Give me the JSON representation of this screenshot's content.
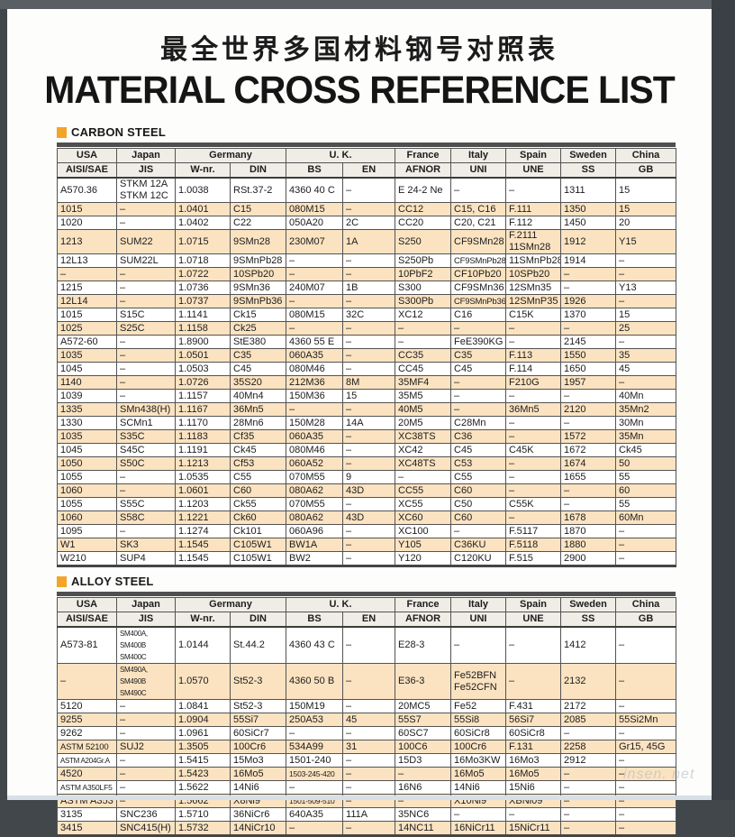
{
  "page": {
    "title_zh": "最全世界多国材料钢号对照表",
    "title_en": "MATERIAL CROSS REFERENCE LIST",
    "watermark": "insen. net"
  },
  "colors": {
    "accent_orange": "#F4A428",
    "row_stripe": "#FBE3C1",
    "header_bg": "#F0EDE7",
    "table_bar": "#4F4F4F",
    "frame_dark": "#42474B"
  },
  "sections": [
    {
      "heading": "CARBON STEEL",
      "groups": [
        {
          "label": "USA",
          "cols": [
            "AISI/SAE"
          ]
        },
        {
          "label": "Japan",
          "cols": [
            "JIS"
          ]
        },
        {
          "label": "Germany",
          "cols": [
            "W-nr.",
            "DIN"
          ]
        },
        {
          "label": "U. K.",
          "cols": [
            "BS",
            "EN"
          ]
        },
        {
          "label": "France",
          "cols": [
            "AFNOR"
          ]
        },
        {
          "label": "Italy",
          "cols": [
            "UNI"
          ]
        },
        {
          "label": "Spain",
          "cols": [
            "UNE"
          ]
        },
        {
          "label": "Sweden",
          "cols": [
            "SS"
          ]
        },
        {
          "label": "China",
          "cols": [
            "GB"
          ]
        }
      ],
      "rows": [
        [
          "A570.36",
          "STKM 12A\nSTKM 12C",
          "1.0038",
          "RSt.37-2",
          "4360 40 C",
          "–",
          "E 24-2 Ne",
          "–",
          "–",
          "1311",
          "15"
        ],
        [
          "1015",
          "–",
          "1.0401",
          "C15",
          "080M15",
          "–",
          "CC12",
          "C15, C16",
          "F.111",
          "1350",
          "15"
        ],
        [
          "1020",
          "–",
          "1.0402",
          "C22",
          "050A20",
          "2C",
          "CC20",
          "C20, C21",
          "F.112",
          "1450",
          "20"
        ],
        [
          "1213",
          "SUM22",
          "1.0715",
          "9SMn28",
          "230M07",
          "1A",
          "S250",
          "CF9SMn28",
          "F.2111\n11SMn28",
          "1912",
          "Y15"
        ],
        [
          "12L13",
          "SUM22L",
          "1.0718",
          "9SMnPb28",
          "–",
          "–",
          "S250Pb",
          "CF9SMnPb28",
          "11SMnPb28",
          "1914",
          "–"
        ],
        [
          "–",
          "–",
          "1.0722",
          "10SPb20",
          "–",
          "–",
          "10PbF2",
          "CF10Pb20",
          "10SPb20",
          "–",
          "–"
        ],
        [
          "1215",
          "–",
          "1.0736",
          "9SMn36",
          "240M07",
          "1B",
          "S300",
          "CF9SMn36",
          "12SMn35",
          "–",
          "Y13"
        ],
        [
          "12L14",
          "–",
          "1.0737",
          "9SMnPb36",
          "–",
          "–",
          "S300Pb",
          "CF9SMnPb36",
          "12SMnP35",
          "1926",
          "–"
        ],
        [
          "1015",
          "S15C",
          "1.1141",
          "Ck15",
          "080M15",
          "32C",
          "XC12",
          "C16",
          "C15K",
          "1370",
          "15"
        ],
        [
          "1025",
          "S25C",
          "1.1158",
          "Ck25",
          "–",
          "–",
          "–",
          "–",
          "–",
          "–",
          "25"
        ],
        [
          "A572-60",
          "–",
          "1.8900",
          "StE380",
          "4360 55 E",
          "–",
          "–",
          "FeE390KG",
          "–",
          "2145",
          "–"
        ],
        [
          "1035",
          "–",
          "1.0501",
          "C35",
          "060A35",
          "–",
          "CC35",
          "C35",
          "F.113",
          "1550",
          "35"
        ],
        [
          "1045",
          "–",
          "1.0503",
          "C45",
          "080M46",
          "–",
          "CC45",
          "C45",
          "F.114",
          "1650",
          "45"
        ],
        [
          "1140",
          "–",
          "1.0726",
          "35S20",
          "212M36",
          "8M",
          "35MF4",
          "–",
          "F210G",
          "1957",
          "–"
        ],
        [
          "1039",
          "–",
          "1.1157",
          "40Mn4",
          "150M36",
          "15",
          "35M5",
          "–",
          "–",
          "–",
          "40Mn"
        ],
        [
          "1335",
          "SMn438(H)",
          "1.1167",
          "36Mn5",
          "–",
          "–",
          "40M5",
          "–",
          "36Mn5",
          "2120",
          "35Mn2"
        ],
        [
          "1330",
          "SCMn1",
          "1.1170",
          "28Mn6",
          "150M28",
          "14A",
          "20M5",
          "C28Mn",
          "–",
          "–",
          "30Mn"
        ],
        [
          "1035",
          "S35C",
          "1.1183",
          "Cf35",
          "060A35",
          "–",
          "XC38TS",
          "C36",
          "–",
          "1572",
          "35Mn"
        ],
        [
          "1045",
          "S45C",
          "1.1191",
          "Ck45",
          "080M46",
          "–",
          "XC42",
          "C45",
          "C45K",
          "1672",
          "Ck45"
        ],
        [
          "1050",
          "S50C",
          "1.1213",
          "Cf53",
          "060A52",
          "–",
          "XC48TS",
          "C53",
          "–",
          "1674",
          "50"
        ],
        [
          "1055",
          "–",
          "1.0535",
          "C55",
          "070M55",
          "9",
          "–",
          "C55",
          "–",
          "1655",
          "55"
        ],
        [
          "1060",
          "–",
          "1.0601",
          "C60",
          "080A62",
          "43D",
          "CC55",
          "C60",
          "–",
          "–",
          "60"
        ],
        [
          "1055",
          "S55C",
          "1.1203",
          "Ck55",
          "070M55",
          "–",
          "XC55",
          "C50",
          "C55K",
          "–",
          "55"
        ],
        [
          "1060",
          "S58C",
          "1.1221",
          "Ck60",
          "080A62",
          "43D",
          "XC60",
          "C60",
          "–",
          "1678",
          "60Mn"
        ],
        [
          "1095",
          "–",
          "1.1274",
          "Ck101",
          "060A96",
          "–",
          "XC100",
          "–",
          "F.5117",
          "1870",
          "–"
        ],
        [
          "W1",
          "SK3",
          "1.1545",
          "C105W1",
          "BW1A",
          "–",
          "Y105",
          "C36KU",
          "F.5118",
          "1880",
          "–"
        ],
        [
          "W210",
          "SUP4",
          "1.1545",
          "C105W1",
          "BW2",
          "–",
          "Y120",
          "C120KU",
          "F.515",
          "2900",
          "–"
        ]
      ]
    },
    {
      "heading": "ALLOY STEEL",
      "groups": [
        {
          "label": "USA",
          "cols": [
            "AISI/SAE"
          ]
        },
        {
          "label": "Japan",
          "cols": [
            "JIS"
          ]
        },
        {
          "label": "Germany",
          "cols": [
            "W-nr.",
            "DIN"
          ]
        },
        {
          "label": "U. K.",
          "cols": [
            "BS",
            "EN"
          ]
        },
        {
          "label": "France",
          "cols": [
            "AFNOR"
          ]
        },
        {
          "label": "Italy",
          "cols": [
            "UNI"
          ]
        },
        {
          "label": "Spain",
          "cols": [
            "UNE"
          ]
        },
        {
          "label": "Sweden",
          "cols": [
            "SS"
          ]
        },
        {
          "label": "China",
          "cols": [
            "GB"
          ]
        }
      ],
      "rows": [
        [
          "A573-81",
          "SM400A, SM400B\nSM400C",
          "1.0144",
          "St.44.2",
          "4360 43 C",
          "–",
          "E28-3",
          "–",
          "–",
          "1412",
          "–"
        ],
        [
          "–",
          "SM490A, SM490B\nSM490C",
          "1.0570",
          "St52-3",
          "4360 50 B",
          "–",
          "E36-3",
          "Fe52BFN\nFe52CFN",
          "–",
          "2132",
          "–"
        ],
        [
          "5120",
          "–",
          "1.0841",
          "St52-3",
          "150M19",
          "–",
          "20MC5",
          "Fe52",
          "F.431",
          "2172",
          "–"
        ],
        [
          "9255",
          "–",
          "1.0904",
          "55Si7",
          "250A53",
          "45",
          "55S7",
          "55Si8",
          "56Si7",
          "2085",
          "55Si2Mn"
        ],
        [
          "9262",
          "–",
          "1.0961",
          "60SiCr7",
          "–",
          "–",
          "60SC7",
          "60SiCr8",
          "60SiCr8",
          "–",
          "–"
        ],
        [
          "ASTM 52100",
          "SUJ2",
          "1.3505",
          "100Cr6",
          "534A99",
          "31",
          "100C6",
          "100Cr6",
          "F.131",
          "2258",
          "Gr15, 45G"
        ],
        [
          "ASTM A204Gr.A",
          "–",
          "1.5415",
          "15Mo3",
          "1501-240",
          "–",
          "15D3",
          "16Mo3KW",
          "16Mo3",
          "2912",
          "–"
        ],
        [
          "4520",
          "–",
          "1.5423",
          "16Mo5",
          "1503-245-420",
          "–",
          "–",
          "16Mo5",
          "16Mo5",
          "–",
          "–"
        ],
        [
          "ASTM A350LF5",
          "–",
          "1.5622",
          "14Ni6",
          "–",
          "–",
          "16N6",
          "14Ni6",
          "15Ni6",
          "–",
          "–"
        ],
        [
          "ASTM A353",
          "–",
          "1.5662",
          "X8Ni9",
          "1501-509-510",
          "–",
          "–",
          "X10Ni9",
          "XBNi09",
          "–",
          "–"
        ],
        [
          "3135",
          "SNC236",
          "1.5710",
          "36NiCr6",
          "640A35",
          "111A",
          "35NC6",
          "–",
          "–",
          "–",
          "–"
        ],
        [
          "3415",
          "SNC415(H)",
          "1.5732",
          "14NiCr10",
          "–",
          "–",
          "14NC11",
          "16NiCr11",
          "15NiCr11",
          "–",
          "–"
        ]
      ]
    }
  ]
}
